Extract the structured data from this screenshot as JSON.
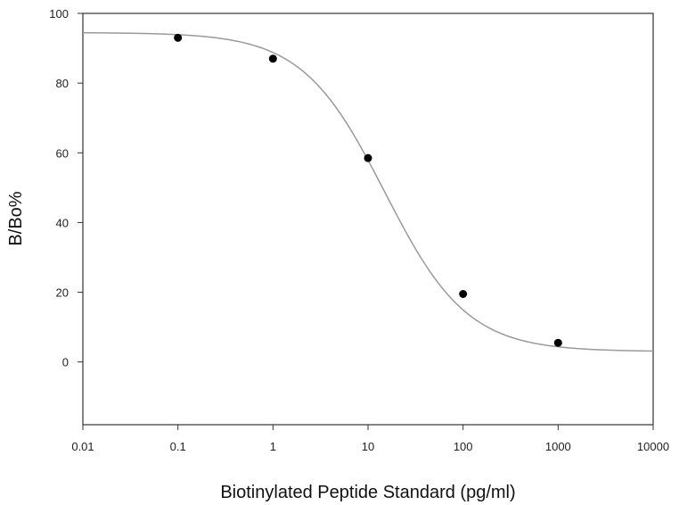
{
  "chart_data": {
    "type": "scatter",
    "title": "",
    "xlabel": "Biotinylated Peptide Standard (pg/ml)",
    "ylabel": "B/Bo%",
    "x_scale": "log",
    "xlim": [
      0.01,
      10000
    ],
    "ylim": [
      -18,
      100
    ],
    "x_ticks": [
      0.01,
      0.1,
      1,
      10,
      100,
      1000,
      10000
    ],
    "x_tick_labels": [
      "0.01",
      "0.1",
      "1",
      "10",
      "100",
      "1000",
      "10000"
    ],
    "y_ticks": [
      0,
      20,
      40,
      60,
      80,
      100
    ],
    "y_tick_labels": [
      "0",
      "20",
      "40",
      "60",
      "80",
      "100"
    ],
    "grid": false,
    "legend": "none",
    "series": [
      {
        "x": [
          0.1,
          1,
          10,
          100,
          1000
        ],
        "y": [
          93,
          87,
          58.5,
          19.5,
          5.5
        ],
        "marker_color": "#000000"
      }
    ],
    "fit_curve": {
      "model": "four-parameter logistic",
      "top": 94.5,
      "bottom": 3.0,
      "ec50": 15,
      "hill": 1.0,
      "color": "#9a9a9a"
    }
  }
}
